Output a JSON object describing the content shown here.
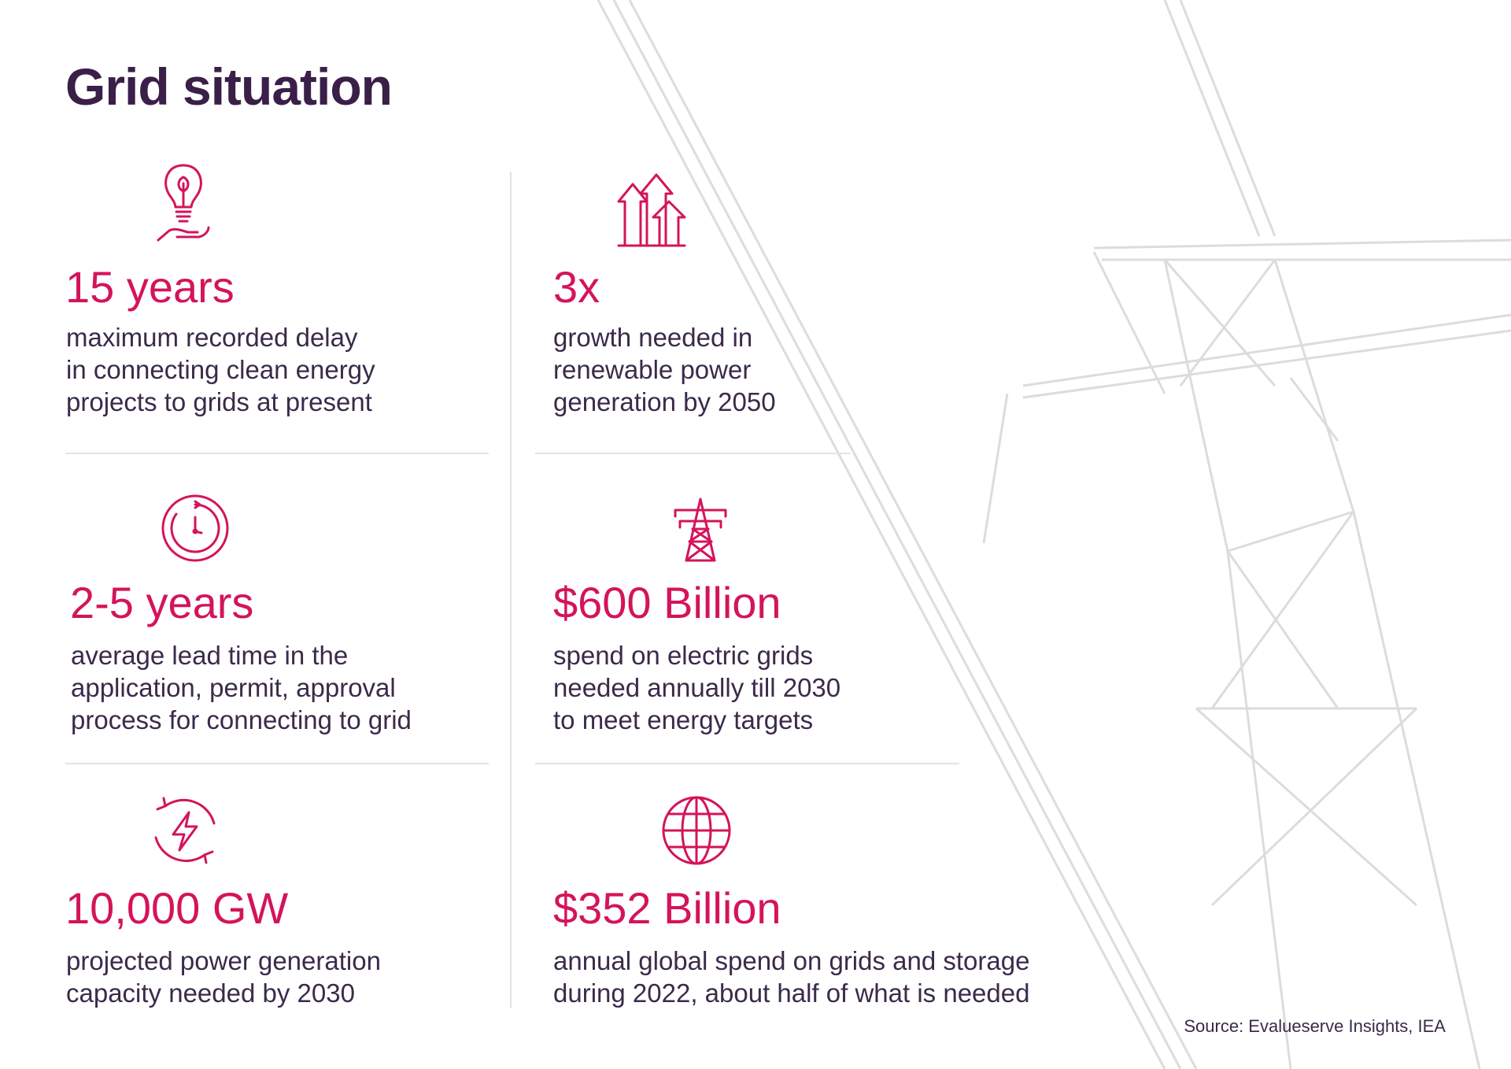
{
  "title": "Grid situation",
  "stats": [
    {
      "value": "15 years",
      "description": [
        "maximum recorded delay",
        "in connecting clean energy",
        "projects to grids at present"
      ]
    },
    {
      "value": "3x",
      "description": [
        "growth needed in",
        "renewable power",
        "generation by 2050"
      ]
    },
    {
      "value": "2-5 years",
      "description": [
        "average lead time in the",
        "application, permit, approval",
        "process for connecting to grid"
      ]
    },
    {
      "value": "$600 Billion",
      "description": [
        "spend on electric grids",
        "needed annually till 2030",
        "to meet energy targets"
      ]
    },
    {
      "value": "10,000 GW",
      "description": [
        "projected power generation",
        "capacity needed by 2030"
      ]
    },
    {
      "value": "$352 Billion",
      "description": [
        "annual global spend on grids and storage",
        "during 2022, about half of what is needed"
      ]
    }
  ],
  "source": "Source: Evalueserve Insights, IEA"
}
